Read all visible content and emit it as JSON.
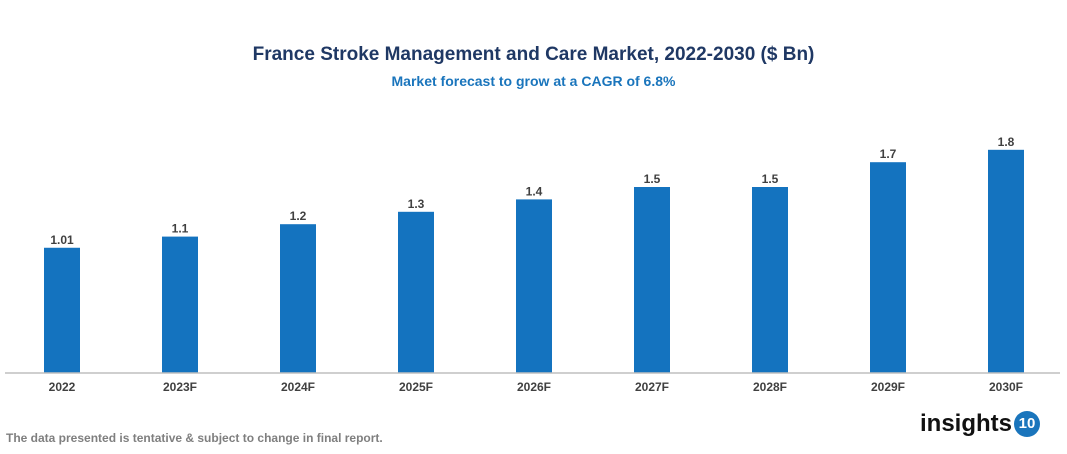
{
  "chart_data": {
    "type": "bar",
    "title": "France Stroke Management and Care Market, 2022-2030 ($ Bn)",
    "subtitle": "Market forecast to grow at a CAGR of 6.8%",
    "categories": [
      "2022",
      "2023F",
      "2024F",
      "2025F",
      "2026F",
      "2027F",
      "2028F",
      "2029F",
      "2030F"
    ],
    "values": [
      1.01,
      1.1,
      1.2,
      1.3,
      1.4,
      1.5,
      1.5,
      1.7,
      1.8
    ],
    "labels": [
      "1.01",
      "1.1",
      "1.2",
      "1.3",
      "1.4",
      "1.5",
      "1.5",
      "1.7",
      "1.8"
    ],
    "xlabel": "",
    "ylabel": "",
    "ylim": [
      0,
      2.0
    ],
    "grid": false,
    "bar_color": "#1473bf"
  },
  "footer": "The data presented is tentative & subject to change in final report.",
  "logo": {
    "text": "insights",
    "badge": "10",
    "badge_color": "#1a75bc"
  }
}
